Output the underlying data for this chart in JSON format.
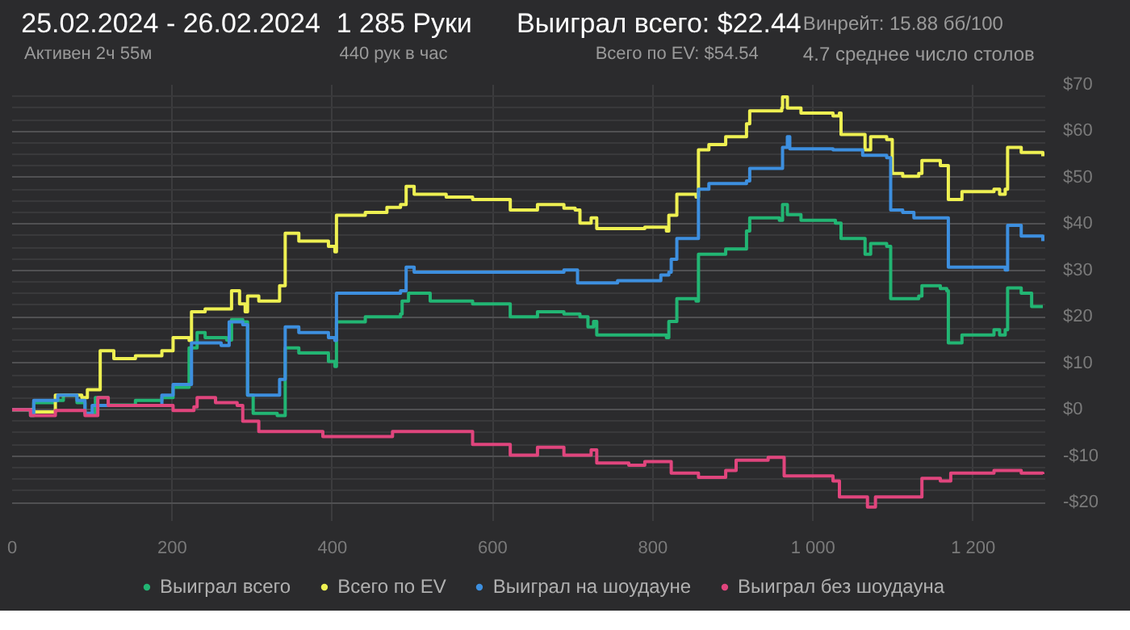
{
  "chart_data": {
    "type": "step",
    "title": "25.02.2024 - 26.02.2024",
    "subtitle": "Активен 2ч 55м",
    "annotations": [
      "1 285 Руки",
      "440 рук в час",
      "Выиграл всего: $22.44",
      "Всего по EV: $54.54",
      "Винрейт: 15.88 бб/100",
      "4.7 среднее число столов"
    ],
    "xlim": [
      0,
      1290
    ],
    "ylim": [
      -24,
      70
    ],
    "xticks": [
      0,
      200,
      400,
      600,
      800,
      {
        "value": 1000,
        "label": "1 000"
      },
      {
        "value": 1200,
        "label": "1 200"
      }
    ],
    "yticks": [
      {
        "value": -20,
        "label": "-$20"
      },
      {
        "value": -10,
        "label": "-$10"
      },
      {
        "value": 0,
        "label": "$0"
      },
      {
        "value": 10,
        "label": "$10"
      },
      {
        "value": 20,
        "label": "$20"
      },
      {
        "value": 30,
        "label": "$30"
      },
      {
        "value": 40,
        "label": "$40"
      },
      {
        "value": 50,
        "label": "$50"
      },
      {
        "value": 60,
        "label": "$60"
      },
      {
        "value": 70,
        "label": "$70"
      }
    ],
    "grid": true,
    "legend": "bottom",
    "marker": "none",
    "line_style": "solid",
    "series": [
      {
        "name": "Выиграл всего",
        "color": "#22b573",
        "x": [
          0,
          23,
          27,
          54,
          64,
          81,
          91,
          104,
          120,
          134,
          154,
          187,
          201,
          217,
          221,
          231,
          241,
          268,
          274,
          288,
          294,
          301,
          331,
          341,
          358,
          395,
          403,
          405,
          441,
          485,
          487,
          495,
          522,
          575,
          622,
          656,
          689,
          709,
          719,
          726,
          730,
          790,
          817,
          820,
          830,
          854,
          857,
          891,
          917,
          921,
          958,
          962,
          968,
          985,
          1028,
          1035,
          1065,
          1072,
          1092,
          1097,
          1112,
          1132,
          1136,
          1159,
          1167,
          1169,
          1186,
          1226,
          1233,
          1240,
          1243,
          1260,
          1273,
          1287
        ],
        "values": [
          0,
          -1.3,
          1.5,
          2,
          3.1,
          1.5,
          -0.8,
          2.6,
          1,
          1,
          2,
          2.6,
          4.8,
          4.8,
          13.3,
          16.6,
          15.5,
          15,
          19.4,
          18.9,
          3.1,
          -0.8,
          -1.3,
          13.3,
          12.2,
          10.4,
          9.3,
          18.9,
          20,
          20.6,
          23.4,
          25.1,
          23.4,
          22.8,
          20,
          21.1,
          20.6,
          20,
          17.8,
          19,
          16.1,
          16.1,
          15.5,
          19,
          23.9,
          23.4,
          33.5,
          34.6,
          38.5,
          41.3,
          40.8,
          44.2,
          42,
          40.8,
          40.2,
          36.9,
          33.5,
          35.8,
          35.2,
          23.9,
          23.9,
          24.5,
          26.7,
          26.1,
          25.6,
          14.4,
          16.1,
          17.2,
          16.1,
          17.2,
          26.2,
          25.1,
          22.2,
          22.2
        ]
      },
      {
        "name": "Всего по EV",
        "color": "#eef052",
        "x": [
          0,
          27,
          54,
          87,
          94,
          110,
          127,
          154,
          187,
          201,
          221,
          224,
          241,
          274,
          284,
          291,
          294,
          308,
          331,
          334,
          341,
          358,
          395,
          403,
          405,
          441,
          468,
          485,
          492,
          502,
          542,
          575,
          622,
          656,
          689,
          703,
          709,
          723,
          730,
          756,
          790,
          817,
          820,
          830,
          854,
          857,
          870,
          891,
          917,
          921,
          944,
          961,
          962,
          968,
          985,
          1025,
          1033,
          1035,
          1065,
          1072,
          1092,
          1099,
          1112,
          1132,
          1136,
          1159,
          1167,
          1169,
          1186,
          1226,
          1233,
          1240,
          1243,
          1260,
          1287
        ],
        "values": [
          0,
          -0.5,
          3.1,
          2.6,
          4.3,
          12.7,
          11,
          11.6,
          12.7,
          15.5,
          14.9,
          21.1,
          21.7,
          25.6,
          22.8,
          21.1,
          24.5,
          23.4,
          23.4,
          26.7,
          38,
          36.3,
          35.2,
          34,
          41.9,
          42.5,
          43.6,
          44.2,
          48.1,
          46.4,
          45.8,
          45.3,
          43,
          44.2,
          43.4,
          43,
          40.2,
          41.3,
          39,
          39,
          39.3,
          38.5,
          41.9,
          46.4,
          45.8,
          56,
          57.1,
          58.8,
          61.6,
          64.4,
          64.4,
          65,
          67.4,
          65,
          63.9,
          63.3,
          63.9,
          59.3,
          56,
          58.8,
          58.2,
          50.9,
          50.3,
          50.9,
          53.7,
          52.6,
          52.6,
          45.3,
          47,
          47.5,
          46.4,
          47.5,
          56.5,
          55.4,
          54.6
        ]
      },
      {
        "name": "Выиграл на шоудауне",
        "color": "#3d8fdf",
        "x": [
          0,
          23,
          27,
          57,
          81,
          91,
          100,
          134,
          187,
          201,
          221,
          224,
          261,
          271,
          288,
          294,
          331,
          334,
          339,
          341,
          358,
          395,
          403,
          405,
          485,
          492,
          502,
          575,
          622,
          689,
          706,
          756,
          803,
          810,
          820,
          823,
          830,
          854,
          857,
          870,
          917,
          921,
          961,
          962,
          968,
          971,
          1025,
          1062,
          1092,
          1097,
          1112,
          1126,
          1166,
          1169,
          1226,
          1240,
          1243,
          1260,
          1287
        ],
        "values": [
          0,
          -0.8,
          2,
          3.1,
          2,
          -0.8,
          0.9,
          0.9,
          3.1,
          5.4,
          5.4,
          14.4,
          13.8,
          18.9,
          18.3,
          3.1,
          3.1,
          6.5,
          6.5,
          17.8,
          16.6,
          15.5,
          14.9,
          25.1,
          25.6,
          30.7,
          29.6,
          29.6,
          29.6,
          30.1,
          27.3,
          27.8,
          27.8,
          29,
          29.6,
          32.4,
          36.9,
          36.9,
          47.5,
          48.7,
          49.3,
          52,
          52,
          56.5,
          58.8,
          56.2,
          56,
          54.8,
          54.3,
          43,
          42.5,
          41.3,
          41.3,
          30.7,
          30.7,
          30.1,
          39.7,
          37.4,
          36.3
        ]
      },
      {
        "name": "Выиграл без шоудауна",
        "color": "#e0457d",
        "x": [
          0,
          23,
          54,
          91,
          107,
          120,
          187,
          201,
          227,
          231,
          254,
          281,
          288,
          308,
          355,
          388,
          422,
          475,
          575,
          622,
          656,
          689,
          719,
          723,
          730,
          770,
          790,
          823,
          857,
          891,
          904,
          944,
          964,
          1025,
          1033,
          1068,
          1078,
          1112,
          1136,
          1159,
          1172,
          1199,
          1226,
          1260,
          1287
        ],
        "values": [
          0,
          -1.3,
          -0.2,
          -1.3,
          2.6,
          0.9,
          0.9,
          -0.2,
          0.6,
          2.6,
          1.5,
          0.9,
          -2.5,
          -4.7,
          -4.7,
          -5.8,
          -5.8,
          -4.7,
          -7.5,
          -9.8,
          -8.1,
          -9.8,
          -9.8,
          -8.7,
          -11.5,
          -12,
          -11.2,
          -13.7,
          -14.6,
          -13.1,
          -10.9,
          -10.3,
          -14.3,
          -15.4,
          -18.8,
          -21,
          -18.8,
          -18.8,
          -14.8,
          -15.4,
          -13.7,
          -13.7,
          -13.1,
          -13.7,
          -13.9
        ]
      }
    ]
  }
}
